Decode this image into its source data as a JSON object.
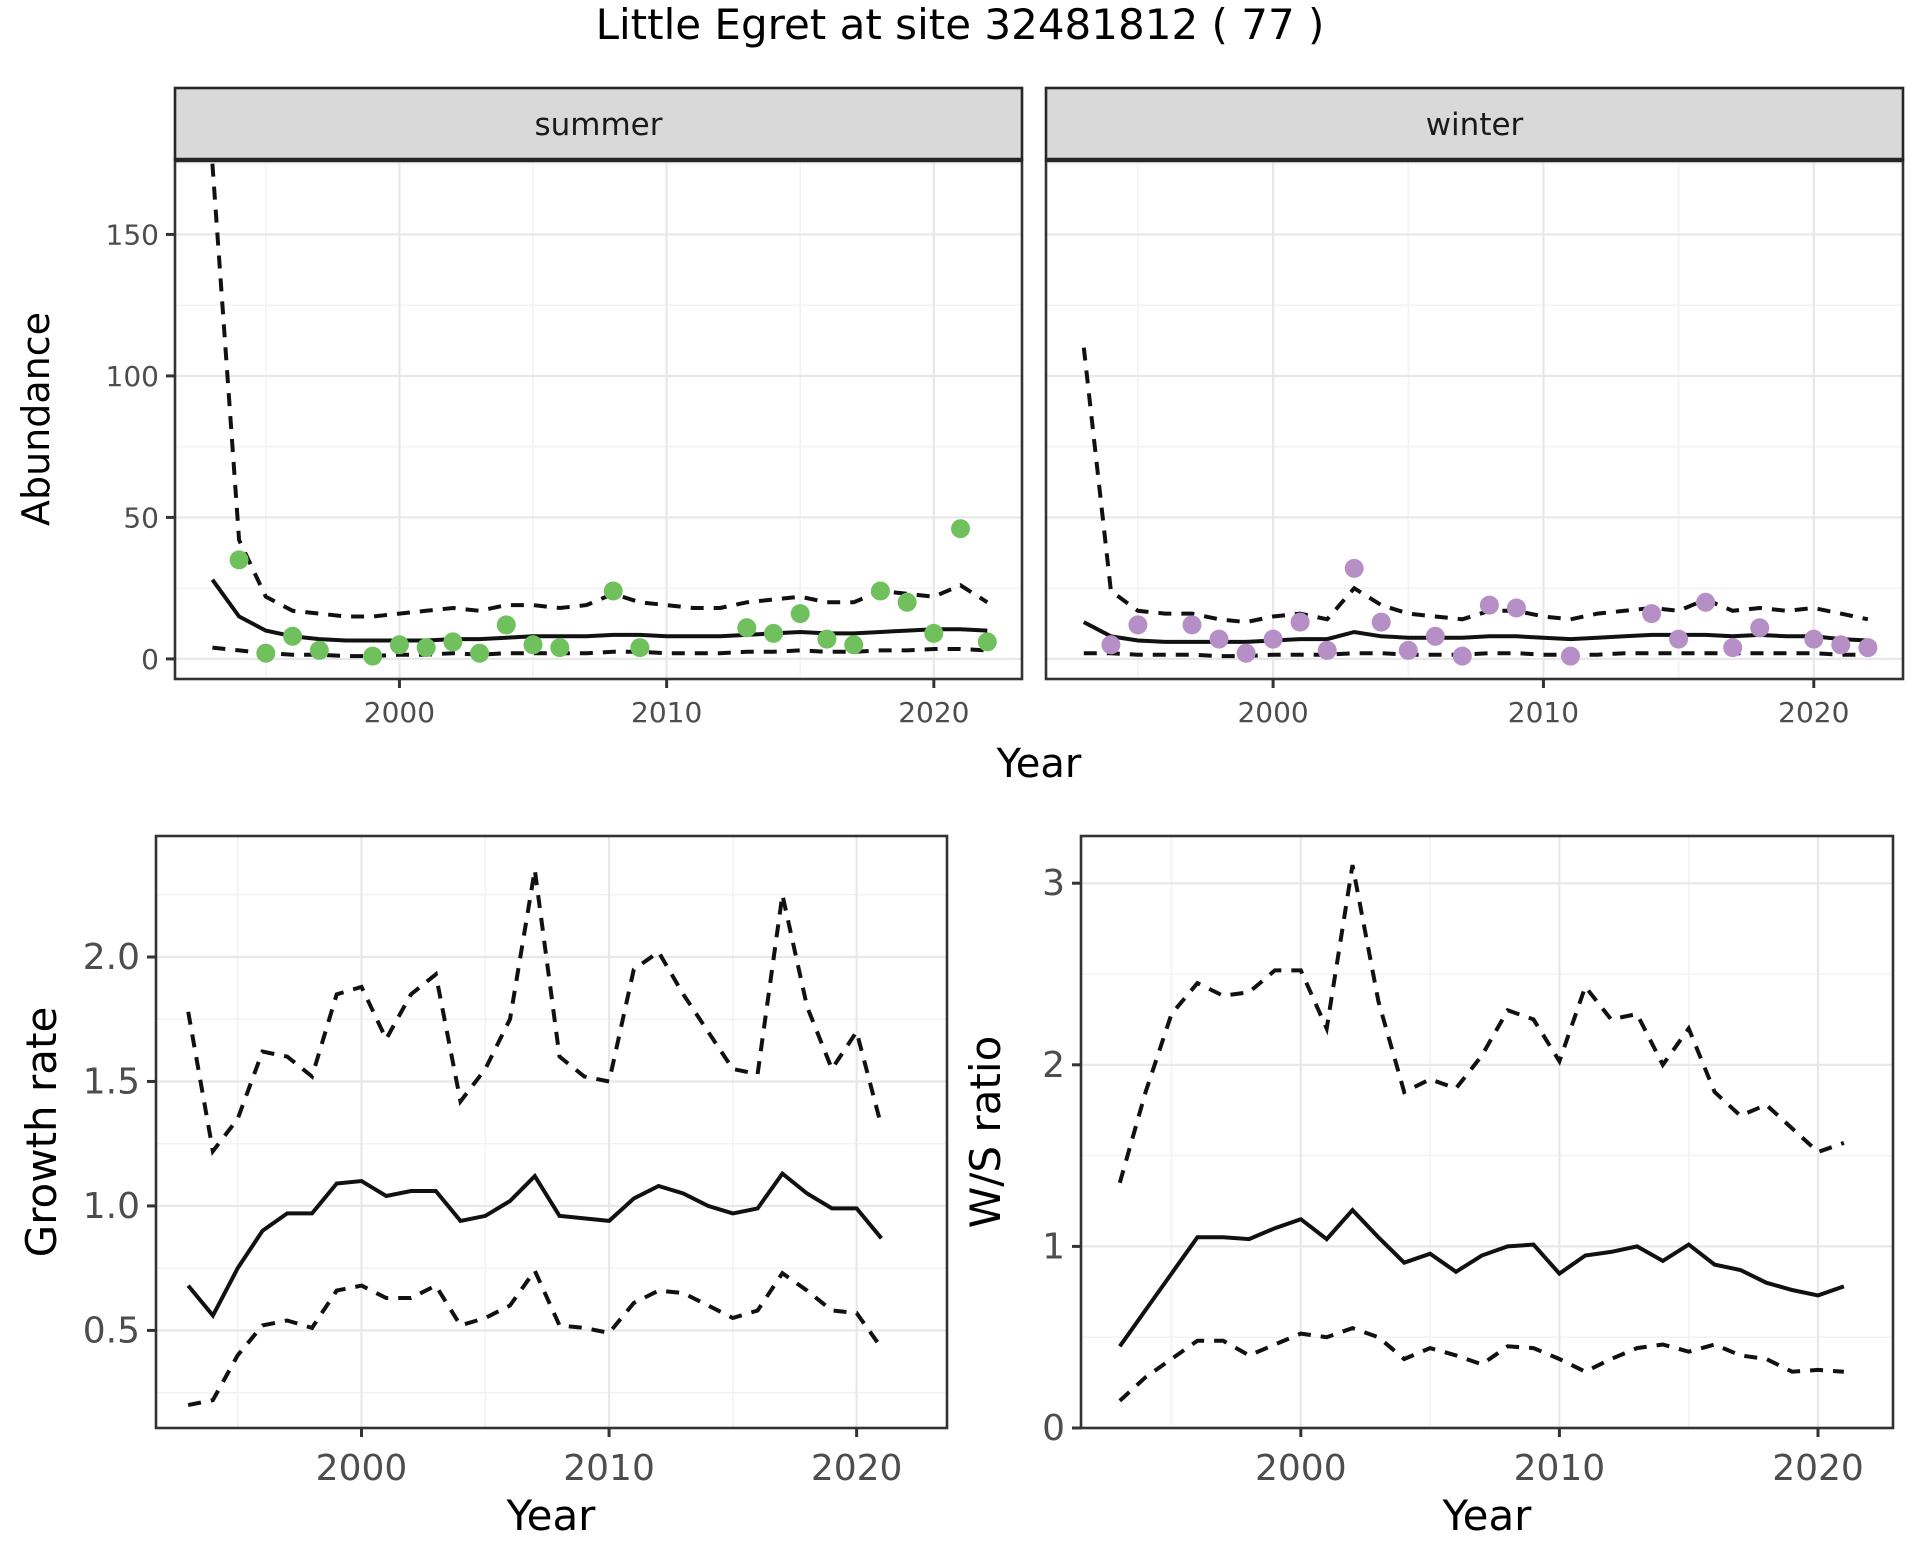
{
  "title": "Little Egret at site 32481812 ( 77 )",
  "colors": {
    "summer_point": "#70c05e",
    "winter_point": "#b58fc5",
    "strip_background": "#d9d9d9",
    "strip_border": "#262626",
    "panel_border": "#333333",
    "grid_major": "#e8e8e8",
    "grid_minor": "#f3f3f3",
    "axis_text": "#4d4d4d",
    "line": "#111111"
  },
  "chart_data": [
    {
      "name": "abundance-summer",
      "type": "line",
      "facet_label": "summer",
      "ylabel": "Abundance",
      "xlabel": "Year",
      "xlim": [
        1991.6,
        2023.3
      ],
      "ylim": [
        -7.1,
        176.3
      ],
      "grid": true,
      "legend": "none",
      "x_ticks": {
        "values": [
          2000,
          2010,
          2020
        ],
        "labels": [
          "2000",
          "2010",
          "2020"
        ]
      },
      "x_minor": [
        1995,
        2005,
        2015
      ],
      "y_ticks": {
        "values": [
          0,
          50,
          100,
          150
        ],
        "labels": [
          "0",
          "50",
          "100",
          "150"
        ]
      },
      "y_minor": [
        25,
        75,
        125,
        175
      ],
      "years": [
        1993,
        1994,
        1995,
        1996,
        1997,
        1998,
        1999,
        2000,
        2001,
        2002,
        2003,
        2004,
        2005,
        2006,
        2007,
        2008,
        2009,
        2010,
        2011,
        2012,
        2013,
        2014,
        2015,
        2016,
        2017,
        2018,
        2019,
        2020,
        2021,
        2022
      ],
      "series": [
        {
          "name": "median_fit",
          "style": "solid",
          "values": [
            28,
            15,
            10,
            8,
            7,
            6.5,
            6.5,
            6.5,
            6.5,
            7,
            7,
            7.5,
            8,
            8,
            8,
            8.5,
            8.5,
            8,
            8,
            8,
            8.5,
            9,
            9.5,
            9,
            9,
            9.5,
            10,
            10.5,
            10.5,
            10
          ]
        },
        {
          "name": "upper_ci",
          "style": "dashed",
          "values": [
            175,
            42,
            22,
            17,
            16,
            15,
            15,
            16,
            17,
            18,
            17,
            19,
            19,
            18,
            19,
            23,
            20,
            19,
            18,
            18,
            20,
            21,
            22,
            20,
            20,
            24,
            23,
            22,
            26,
            20
          ]
        },
        {
          "name": "lower_ci",
          "style": "dashed",
          "values": [
            4,
            3,
            2,
            1.5,
            1.5,
            1,
            1,
            1.5,
            1.5,
            2,
            1.5,
            2,
            2,
            2,
            2,
            2.5,
            2.5,
            2,
            2,
            2,
            2.5,
            2.5,
            3,
            2.5,
            2.5,
            3,
            3,
            3.5,
            3.5,
            3
          ]
        }
      ],
      "points": {
        "color": "#70c05e",
        "data": [
          [
            1994,
            35
          ],
          [
            1995,
            2
          ],
          [
            1996,
            8
          ],
          [
            1997,
            3
          ],
          [
            1999,
            1
          ],
          [
            2000,
            5
          ],
          [
            2001,
            4
          ],
          [
            2002,
            6
          ],
          [
            2003,
            2
          ],
          [
            2004,
            12
          ],
          [
            2005,
            5
          ],
          [
            2006,
            4
          ],
          [
            2008,
            24
          ],
          [
            2009,
            4
          ],
          [
            2013,
            11
          ],
          [
            2014,
            9
          ],
          [
            2015,
            16
          ],
          [
            2016,
            7
          ],
          [
            2017,
            5
          ],
          [
            2018,
            24
          ],
          [
            2019,
            20
          ],
          [
            2020,
            9
          ],
          [
            2021,
            46
          ],
          [
            2022,
            6
          ]
        ]
      }
    },
    {
      "name": "abundance-winter",
      "type": "line",
      "facet_label": "winter",
      "ylabel": "Abundance",
      "xlabel": "Year",
      "xlim": [
        1991.6,
        2023.3
      ],
      "ylim": [
        -7.1,
        176.3
      ],
      "grid": true,
      "legend": "none",
      "x_ticks": {
        "values": [
          2000,
          2010,
          2020
        ],
        "labels": [
          "2000",
          "2010",
          "2020"
        ]
      },
      "x_minor": [
        1995,
        2005,
        2015
      ],
      "y_ticks": {
        "values": [
          0,
          50,
          100,
          150
        ],
        "labels": [
          "0",
          "50",
          "100",
          "150"
        ]
      },
      "y_minor": [
        25,
        75,
        125,
        175
      ],
      "years": [
        1993,
        1994,
        1995,
        1996,
        1997,
        1998,
        1999,
        2000,
        2001,
        2002,
        2003,
        2004,
        2005,
        2006,
        2007,
        2008,
        2009,
        2010,
        2011,
        2012,
        2013,
        2014,
        2015,
        2016,
        2017,
        2018,
        2019,
        2020,
        2021,
        2022
      ],
      "series": [
        {
          "name": "median_fit",
          "style": "solid",
          "values": [
            13,
            8,
            6.5,
            6,
            6,
            6,
            6,
            6.5,
            7,
            7,
            9.5,
            8,
            7.5,
            7.5,
            7.5,
            8,
            8,
            7.5,
            7,
            7.5,
            8,
            8.5,
            8.5,
            8.5,
            8,
            8.5,
            8,
            8,
            7,
            6.5
          ]
        },
        {
          "name": "upper_ci",
          "style": "dashed",
          "values": [
            110,
            24,
            17,
            16,
            16,
            14,
            13,
            15,
            16,
            14,
            25,
            19,
            16,
            15,
            14,
            17,
            17,
            15,
            14,
            16,
            17,
            18,
            17,
            21,
            17,
            18,
            17,
            18,
            16,
            14
          ]
        },
        {
          "name": "lower_ci",
          "style": "dashed",
          "values": [
            2,
            2,
            1.5,
            1.5,
            1.5,
            1,
            1,
            1.5,
            1.5,
            1.5,
            2,
            2,
            1.5,
            1.5,
            1.5,
            2,
            2,
            1.5,
            1.5,
            1.5,
            2,
            2,
            2,
            2,
            2,
            2,
            2,
            2,
            1.5,
            1.5
          ]
        }
      ],
      "points": {
        "color": "#b58fc5",
        "data": [
          [
            1994,
            5
          ],
          [
            1995,
            12
          ],
          [
            1997,
            12
          ],
          [
            1998,
            7
          ],
          [
            1999,
            2
          ],
          [
            2000,
            7
          ],
          [
            2001,
            13
          ],
          [
            2002,
            3
          ],
          [
            2003,
            32
          ],
          [
            2004,
            13
          ],
          [
            2005,
            3
          ],
          [
            2006,
            8
          ],
          [
            2007,
            1
          ],
          [
            2008,
            19
          ],
          [
            2009,
            18
          ],
          [
            2011,
            1
          ],
          [
            2014,
            16
          ],
          [
            2015,
            7
          ],
          [
            2016,
            20
          ],
          [
            2017,
            4
          ],
          [
            2018,
            11
          ],
          [
            2020,
            7
          ],
          [
            2021,
            5
          ],
          [
            2022,
            4
          ]
        ]
      }
    },
    {
      "name": "growth-rate",
      "type": "line",
      "facet_label": "",
      "ylabel": "Growth rate",
      "xlabel": "Year",
      "xlim": [
        1991.7,
        2023.65
      ],
      "ylim": [
        0.108,
        2.486
      ],
      "grid": true,
      "legend": "none",
      "x_ticks": {
        "values": [
          2000,
          2010,
          2020
        ],
        "labels": [
          "2000",
          "2010",
          "2020"
        ]
      },
      "x_minor": [
        1995,
        2005,
        2015
      ],
      "y_ticks": {
        "values": [
          0.5,
          1.0,
          1.5,
          2.0
        ],
        "labels": [
          "0.5",
          "1.0",
          "1.5",
          "2.0"
        ]
      },
      "y_minor": [
        0.25,
        0.75,
        1.25,
        1.75,
        2.25
      ],
      "years": [
        1993,
        1994,
        1995,
        1996,
        1997,
        1998,
        1999,
        2000,
        2001,
        2002,
        2003,
        2004,
        2005,
        2006,
        2007,
        2008,
        2009,
        2010,
        2011,
        2012,
        2013,
        2014,
        2015,
        2016,
        2017,
        2018,
        2019,
        2020,
        2021
      ],
      "series": [
        {
          "name": "median_growth_rate",
          "style": "solid",
          "values": [
            0.68,
            0.56,
            0.75,
            0.9,
            0.97,
            0.97,
            1.09,
            1.1,
            1.04,
            1.06,
            1.06,
            0.94,
            0.96,
            1.02,
            1.12,
            0.96,
            0.95,
            0.94,
            1.03,
            1.08,
            1.05,
            1.0,
            0.97,
            0.99,
            1.13,
            1.05,
            0.99,
            0.99,
            0.87
          ]
        },
        {
          "name": "upper_ci",
          "style": "dashed",
          "values": [
            1.78,
            1.22,
            1.35,
            1.62,
            1.6,
            1.52,
            1.85,
            1.88,
            1.67,
            1.85,
            1.93,
            1.42,
            1.55,
            1.75,
            2.35,
            1.6,
            1.52,
            1.5,
            1.95,
            2.02,
            1.85,
            1.7,
            1.55,
            1.53,
            2.25,
            1.8,
            1.55,
            1.7,
            1.32
          ]
        },
        {
          "name": "lower_ci",
          "style": "dashed",
          "values": [
            0.2,
            0.22,
            0.4,
            0.52,
            0.54,
            0.51,
            0.66,
            0.68,
            0.63,
            0.63,
            0.68,
            0.52,
            0.55,
            0.6,
            0.74,
            0.52,
            0.51,
            0.49,
            0.61,
            0.66,
            0.65,
            0.6,
            0.55,
            0.58,
            0.73,
            0.66,
            0.58,
            0.57,
            0.43
          ]
        }
      ],
      "points": {
        "color": "",
        "data": []
      }
    },
    {
      "name": "ws-ratio",
      "type": "line",
      "facet_label": "",
      "ylabel": "W/S ratio",
      "xlabel": "Year",
      "xlim": [
        1991.5,
        2022.9
      ],
      "ylim": [
        0,
        3.26
      ],
      "grid": true,
      "legend": "none",
      "x_ticks": {
        "values": [
          2000,
          2010,
          2020
        ],
        "labels": [
          "2000",
          "2010",
          "2020"
        ]
      },
      "x_minor": [
        1995,
        2005,
        2015
      ],
      "y_ticks": {
        "values": [
          0,
          1,
          2,
          3
        ],
        "labels": [
          "0",
          "1",
          "2",
          "3"
        ]
      },
      "y_minor": [
        0.5,
        1.5,
        2.5
      ],
      "years": [
        1993,
        1994,
        1995,
        1996,
        1997,
        1998,
        1999,
        2000,
        2001,
        2002,
        2003,
        2004,
        2005,
        2006,
        2007,
        2008,
        2009,
        2010,
        2011,
        2012,
        2013,
        2014,
        2015,
        2016,
        2017,
        2018,
        2019,
        2020,
        2021
      ],
      "series": [
        {
          "name": "median_ws_ratio",
          "style": "solid",
          "values": [
            0.45,
            0.65,
            0.85,
            1.05,
            1.05,
            1.04,
            1.1,
            1.15,
            1.04,
            1.2,
            1.05,
            0.91,
            0.96,
            0.86,
            0.95,
            1.0,
            1.01,
            0.85,
            0.95,
            0.97,
            1.0,
            0.92,
            1.01,
            0.9,
            0.87,
            0.8,
            0.76,
            0.73,
            0.78
          ]
        },
        {
          "name": "upper_ci",
          "style": "dashed",
          "values": [
            1.35,
            1.85,
            2.28,
            2.45,
            2.38,
            2.4,
            2.52,
            2.52,
            2.2,
            3.1,
            2.35,
            1.85,
            1.92,
            1.87,
            2.05,
            2.3,
            2.25,
            2.02,
            2.43,
            2.25,
            2.28,
            2.0,
            2.2,
            1.85,
            1.72,
            1.78,
            1.65,
            1.52,
            1.57
          ]
        },
        {
          "name": "lower_ci",
          "style": "dashed",
          "values": [
            0.15,
            0.28,
            0.38,
            0.48,
            0.48,
            0.4,
            0.46,
            0.52,
            0.5,
            0.55,
            0.5,
            0.38,
            0.44,
            0.4,
            0.35,
            0.45,
            0.44,
            0.38,
            0.31,
            0.38,
            0.44,
            0.46,
            0.42,
            0.46,
            0.4,
            0.38,
            0.31,
            0.32,
            0.31
          ]
        }
      ],
      "points": {
        "color": "",
        "data": []
      }
    }
  ]
}
